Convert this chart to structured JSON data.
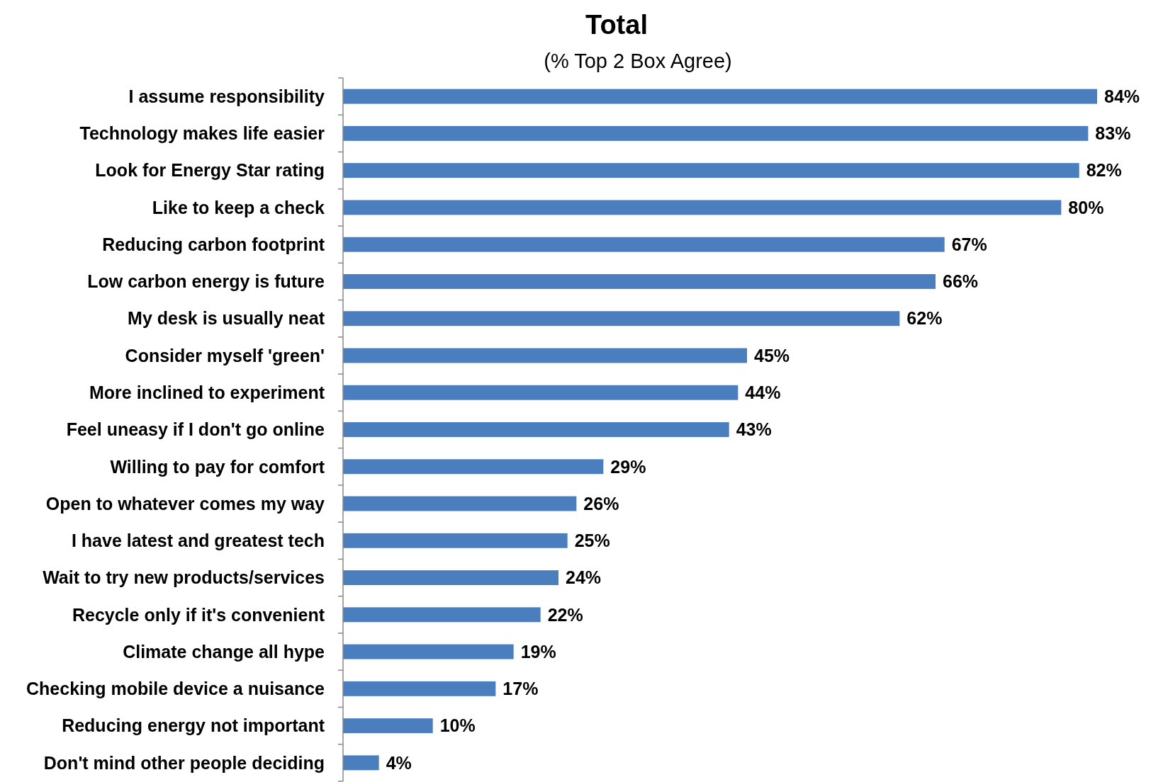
{
  "chart_data": {
    "type": "bar",
    "orientation": "horizontal",
    "title": "Total",
    "subtitle": "(% Top 2 Box Agree)",
    "categories": [
      "I assume responsibility",
      "Technology makes life easier",
      "Look for Energy Star rating",
      "Like to keep a check",
      "Reducing carbon footprint",
      "Low carbon energy is future",
      "My desk is usually neat",
      "Consider myself 'green'",
      "More inclined to experiment",
      "Feel uneasy if I don't go online",
      "Willing to pay for comfort",
      "Open to whatever comes my way",
      "I have latest and greatest tech",
      "Wait to try new products/services",
      "Recycle only if it's convenient",
      "Climate change all hype",
      "Checking mobile device a nuisance",
      "Reducing energy not important",
      "Don't mind other people deciding"
    ],
    "values": [
      84,
      83,
      82,
      80,
      67,
      66,
      62,
      45,
      44,
      43,
      29,
      26,
      25,
      24,
      22,
      19,
      17,
      10,
      4
    ],
    "value_labels": [
      "84%",
      "83%",
      "82%",
      "80%",
      "67%",
      "66%",
      "62%",
      "45%",
      "44%",
      "43%",
      "29%",
      "26%",
      "25%",
      "24%",
      "22%",
      "19%",
      "17%",
      "10%",
      "4%"
    ],
    "color": "#4a7ebf"
  }
}
